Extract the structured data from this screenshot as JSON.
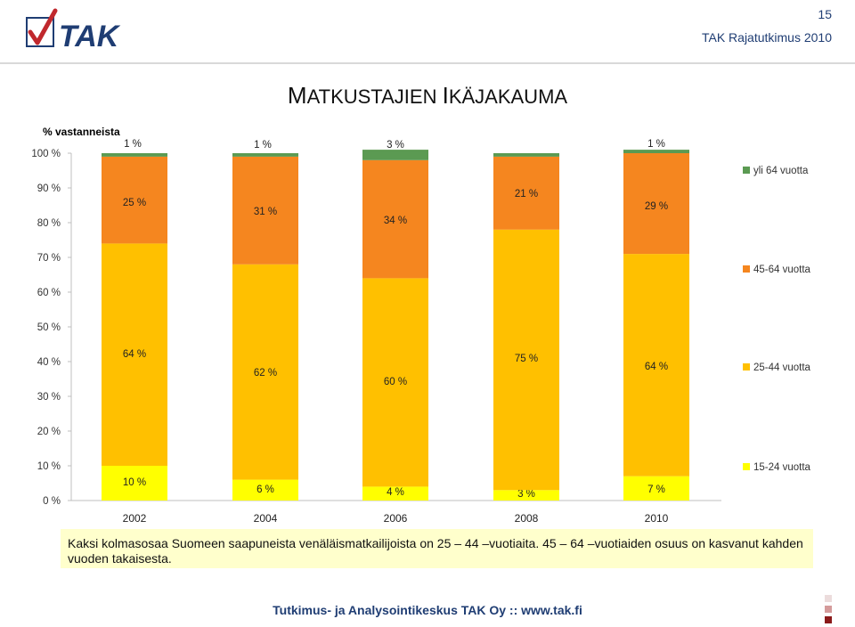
{
  "header": {
    "logo_text": "TAK",
    "page_number": "15",
    "subtitle": "TAK Rajatutkimus 2010",
    "title": "MATKUSTAJIEN IKÄJAKAUMA"
  },
  "chart_data": {
    "type": "bar",
    "stacked": true,
    "ylabel": "% vastanneista",
    "ylim": [
      0,
      100
    ],
    "yticks": [
      "0 %",
      "10 %",
      "20 %",
      "30 %",
      "40 %",
      "50 %",
      "60 %",
      "70 %",
      "80 %",
      "90 %",
      "100 %"
    ],
    "categories": [
      "2002",
      "2004",
      "2006",
      "2008",
      "2010"
    ],
    "legend_position": "right",
    "grid": false,
    "series": [
      {
        "name": "15-24 vuotta",
        "color": "#ffff00",
        "values": [
          10,
          6,
          4,
          3,
          7
        ],
        "labels": [
          "10 %",
          "6 %",
          "4 %",
          "3 %",
          "7 %"
        ]
      },
      {
        "name": "25-44 vuotta",
        "color": "#ffc000",
        "values": [
          64,
          62,
          60,
          75,
          64
        ],
        "labels": [
          "64 %",
          "62 %",
          "60 %",
          "75 %",
          "64 %"
        ]
      },
      {
        "name": "45-64 vuotta",
        "color": "#f5861f",
        "values": [
          25,
          31,
          34,
          21,
          29
        ],
        "labels": [
          "25 %",
          "31 %",
          "34 %",
          "21 %",
          "29 %"
        ]
      },
      {
        "name": "yli 64 vuotta",
        "color": "#5b9a52",
        "values": [
          1,
          1,
          3,
          1,
          1
        ],
        "labels": [
          "1 %",
          "1 %",
          "3 %",
          "",
          "1 %"
        ]
      }
    ]
  },
  "note": "Kaksi kolmasosaa Suomeen saapuneista venäläismatkailijoista on 25 – 44 –vuotiaita. 45 – 64 –vuotiaiden osuus on kasvanut kahden vuoden takaisesta.",
  "footer": "Tutkimus- ja Analysointikeskus TAK Oy :: www.tak.fi",
  "colors": {
    "brand_blue": "#1f3d73",
    "note_bg": "#ffffcc",
    "logo_red": "#c0282d"
  }
}
